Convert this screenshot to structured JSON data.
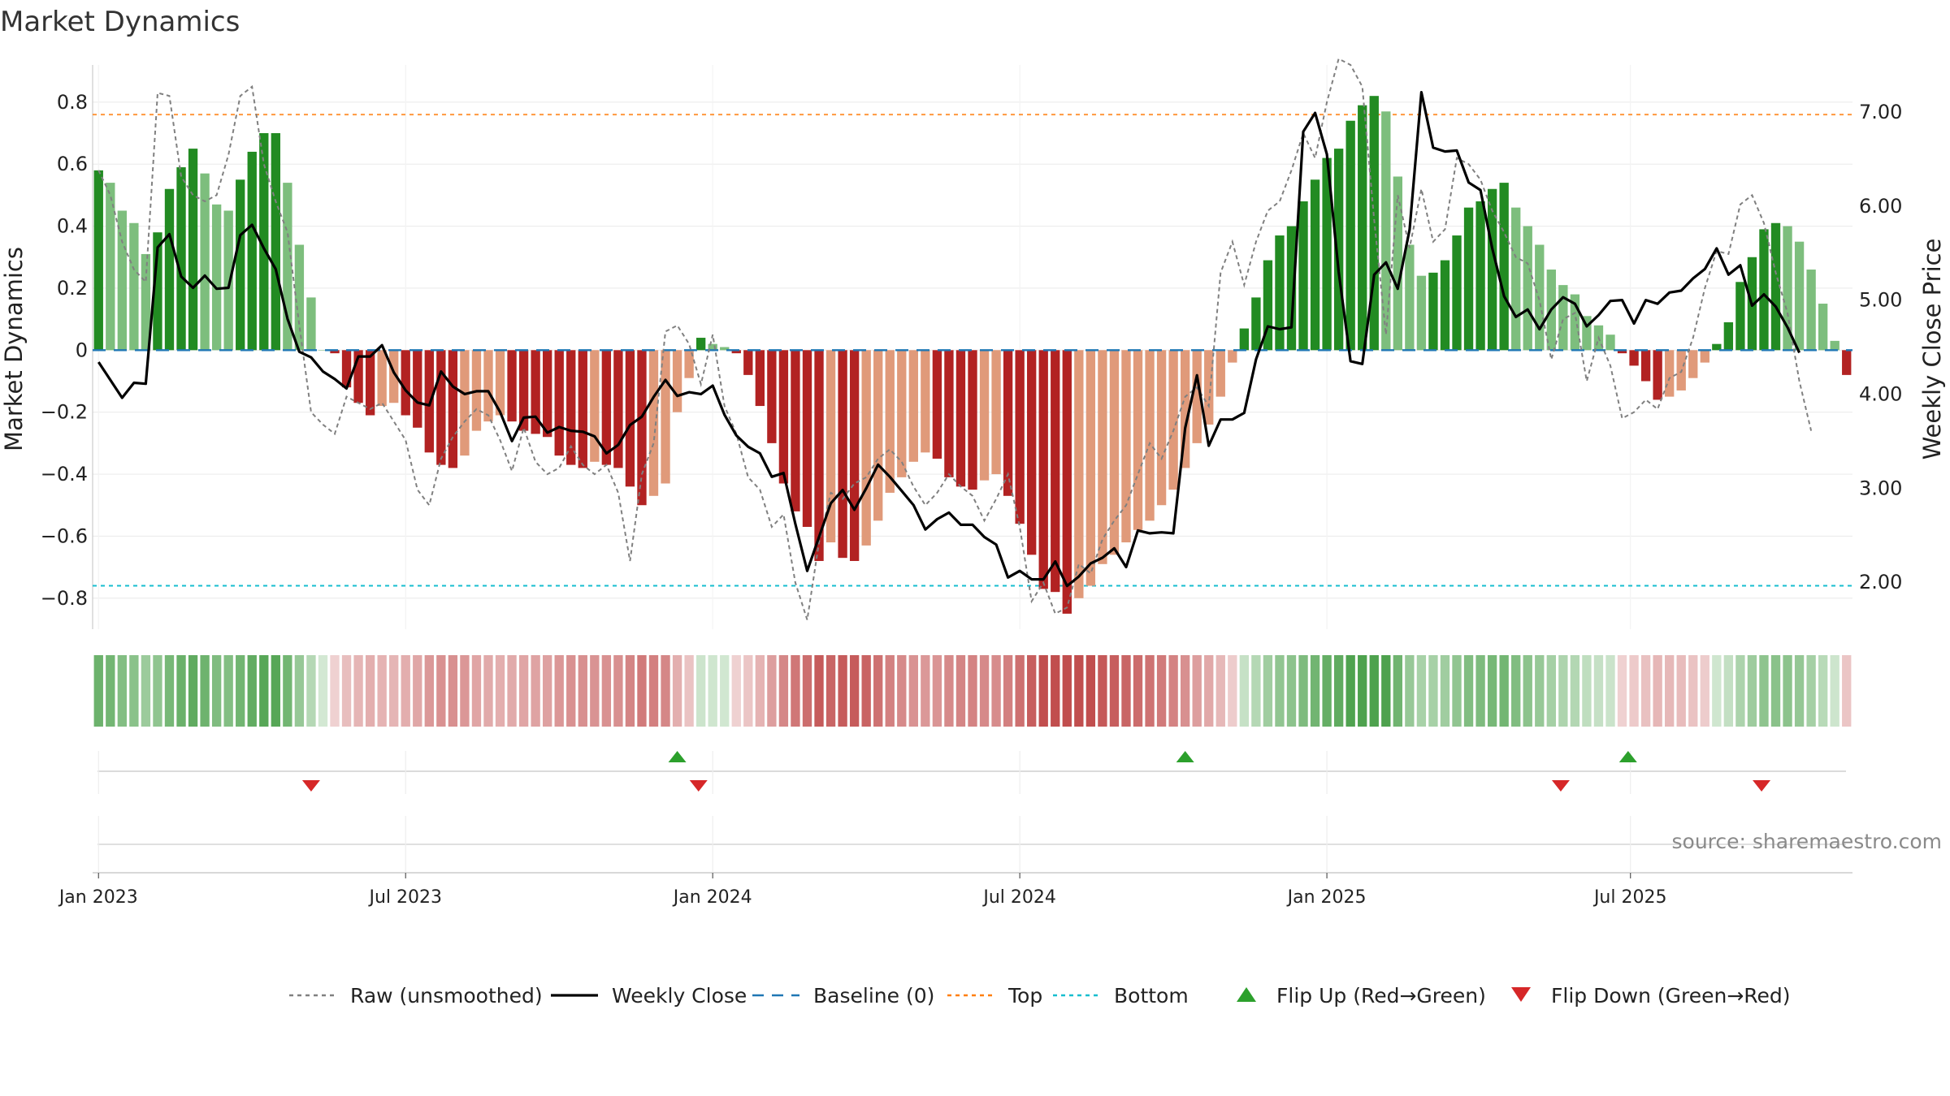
{
  "chart_data": {
    "type": "bar",
    "title": "Market Dynamics",
    "ylabel_left": "Market Dynamics",
    "ylabel_right": "Weekly Close Price",
    "source_text": "source: sharemaestro.com",
    "x_ticks": [
      "Jan 2023",
      "Jul 2023",
      "Jan 2024",
      "Jul 2024",
      "Jan 2025",
      "Jul 2025"
    ],
    "x_tick_weeks": [
      0.5,
      26.5,
      52.5,
      78.5,
      104.5,
      130.2
    ],
    "y_left_ticks": [
      "0.8",
      "0.6",
      "0.4",
      "0.2",
      "0",
      "−0.2",
      "−0.4",
      "−0.6",
      "−0.8"
    ],
    "y_left_tick_values": [
      0.8,
      0.6,
      0.4,
      0.2,
      0,
      -0.2,
      -0.4,
      -0.6,
      -0.8
    ],
    "y_right_ticks": [
      "7.00",
      "6.00",
      "5.00",
      "4.00",
      "3.00",
      "2.00"
    ],
    "y_right_tick_values": [
      7,
      6,
      5,
      4,
      3,
      2
    ],
    "ylim_left": [
      -0.9,
      0.92
    ],
    "ylim_right": [
      1.5,
      7.5
    ],
    "grid": true,
    "legend_position": "bottom",
    "reference_lines": {
      "top": 0.76,
      "bottom": -0.76,
      "baseline": 0
    },
    "colors": {
      "strong_green": "#228B22",
      "light_green": "#7DBE7D",
      "strong_red": "#B22222",
      "light_red": "#E09A7A",
      "raw_line": "#808080",
      "close_line": "#000000",
      "baseline": "#1F77B4",
      "top": "#FF7F0E",
      "bottom": "#17BECF",
      "flip_up": "#2CA02C",
      "flip_down": "#D62728"
    },
    "series": [
      {
        "name": "Market Dynamics (smoothed)",
        "values": [
          0.58,
          0.54,
          0.45,
          0.41,
          0.31,
          0.38,
          0.52,
          0.59,
          0.65,
          0.57,
          0.47,
          0.45,
          0.55,
          0.64,
          0.7,
          0.7,
          0.54,
          0.34,
          0.17,
          0.0,
          -0.01,
          -0.12,
          -0.17,
          -0.21,
          -0.18,
          -0.17,
          -0.21,
          -0.25,
          -0.33,
          -0.37,
          -0.38,
          -0.34,
          -0.26,
          -0.23,
          -0.21,
          -0.23,
          -0.26,
          -0.27,
          -0.28,
          -0.34,
          -0.37,
          -0.38,
          -0.36,
          -0.37,
          -0.38,
          -0.44,
          -0.5,
          -0.47,
          -0.43,
          -0.2,
          -0.09,
          0.04,
          0.02,
          0.01,
          -0.01,
          -0.08,
          -0.18,
          -0.3,
          -0.43,
          -0.52,
          -0.57,
          -0.68,
          -0.62,
          -0.67,
          -0.68,
          -0.63,
          -0.55,
          -0.46,
          -0.41,
          -0.36,
          -0.33,
          -0.35,
          -0.41,
          -0.44,
          -0.45,
          -0.42,
          -0.4,
          -0.47,
          -0.56,
          -0.66,
          -0.77,
          -0.78,
          -0.85,
          -0.8,
          -0.76,
          -0.69,
          -0.66,
          -0.62,
          -0.58,
          -0.55,
          -0.5,
          -0.45,
          -0.38,
          -0.3,
          -0.24,
          -0.15,
          -0.04,
          0.07,
          0.17,
          0.29,
          0.37,
          0.4,
          0.48,
          0.55,
          0.62,
          0.65,
          0.74,
          0.79,
          0.82,
          0.77,
          0.56,
          0.34,
          0.24,
          0.25,
          0.29,
          0.37,
          0.46,
          0.48,
          0.52,
          0.54,
          0.46,
          0.4,
          0.34,
          0.26,
          0.21,
          0.18,
          0.11,
          0.08,
          0.05,
          -0.01,
          -0.05,
          -0.1,
          -0.16,
          -0.15,
          -0.13,
          -0.09,
          -0.04,
          0.02,
          0.09,
          0.22,
          0.3,
          0.39,
          0.41,
          0.4,
          0.35,
          0.26,
          0.15,
          0.03,
          -0.08
        ]
      },
      {
        "name": "Raw (unsmoothed)",
        "values": [
          0.58,
          0.5,
          0.35,
          0.26,
          0.22,
          0.83,
          0.82,
          0.56,
          0.5,
          0.48,
          0.5,
          0.63,
          0.82,
          0.85,
          0.6,
          0.48,
          0.38,
          0.08,
          -0.2,
          -0.24,
          -0.27,
          -0.15,
          -0.17,
          -0.19,
          -0.17,
          -0.23,
          -0.29,
          -0.45,
          -0.5,
          -0.35,
          -0.28,
          -0.23,
          -0.19,
          -0.21,
          -0.29,
          -0.39,
          -0.25,
          -0.36,
          -0.4,
          -0.38,
          -0.31,
          -0.37,
          -0.4,
          -0.37,
          -0.46,
          -0.68,
          -0.4,
          -0.3,
          0.06,
          0.08,
          0.02,
          -0.11,
          0.05,
          -0.18,
          -0.27,
          -0.41,
          -0.45,
          -0.57,
          -0.53,
          -0.75,
          -0.87,
          -0.62,
          -0.46,
          -0.48,
          -0.43,
          -0.41,
          -0.35,
          -0.32,
          -0.36,
          -0.44,
          -0.5,
          -0.46,
          -0.4,
          -0.44,
          -0.47,
          -0.55,
          -0.48,
          -0.4,
          -0.57,
          -0.81,
          -0.75,
          -0.85,
          -0.83,
          -0.69,
          -0.72,
          -0.61,
          -0.55,
          -0.5,
          -0.4,
          -0.3,
          -0.35,
          -0.26,
          -0.15,
          -0.12,
          -0.18,
          0.25,
          0.35,
          0.21,
          0.35,
          0.45,
          0.48,
          0.58,
          0.7,
          0.62,
          0.8,
          0.94,
          0.92,
          0.85,
          0.42,
          0.05,
          0.5,
          0.33,
          0.52,
          0.35,
          0.39,
          0.62,
          0.6,
          0.55,
          0.45,
          0.38,
          0.3,
          0.28,
          0.16,
          -0.03,
          0.1,
          0.12,
          -0.1,
          0.04,
          -0.05,
          -0.22,
          -0.2,
          -0.16,
          -0.19,
          -0.09,
          -0.07,
          0.04,
          0.2,
          0.32,
          0.31,
          0.47,
          0.5,
          0.41,
          0.25,
          0.12,
          -0.1,
          -0.26
        ]
      },
      {
        "name": "Weekly Close",
        "values": [
          4.34,
          4.15,
          3.96,
          4.12,
          4.11,
          5.56,
          5.7,
          5.25,
          5.13,
          5.26,
          5.12,
          5.13,
          5.69,
          5.8,
          5.55,
          5.33,
          4.8,
          4.45,
          4.39,
          4.24,
          4.16,
          4.06,
          4.4,
          4.4,
          4.52,
          4.23,
          4.04,
          3.91,
          3.88,
          4.24,
          4.08,
          4.0,
          4.03,
          4.03,
          3.81,
          3.5,
          3.75,
          3.76,
          3.59,
          3.65,
          3.61,
          3.6,
          3.55,
          3.37,
          3.46,
          3.67,
          3.76,
          3.97,
          4.15,
          3.98,
          4.02,
          4.0,
          4.09,
          3.78,
          3.56,
          3.44,
          3.37,
          3.12,
          3.16,
          2.62,
          2.12,
          2.48,
          2.84,
          2.98,
          2.77,
          3.0,
          3.25,
          3.12,
          2.97,
          2.82,
          2.56,
          2.67,
          2.74,
          2.61,
          2.61,
          2.48,
          2.4,
          2.05,
          2.12,
          2.03,
          2.03,
          2.22,
          1.96,
          2.06,
          2.2,
          2.26,
          2.36,
          2.16,
          2.55,
          2.52,
          2.53,
          2.52,
          3.64,
          4.2,
          3.45,
          3.73,
          3.73,
          3.8,
          4.37,
          4.72,
          4.69,
          4.71,
          6.79,
          6.99,
          6.55,
          5.3,
          4.35,
          4.32,
          5.27,
          5.4,
          5.12,
          5.75,
          7.21,
          6.62,
          6.58,
          6.59,
          6.25,
          6.17,
          5.55,
          5.04,
          4.82,
          4.9,
          4.69,
          4.9,
          5.03,
          4.96,
          4.72,
          4.84,
          4.99,
          5.0,
          4.75,
          5.0,
          4.96,
          5.08,
          5.1,
          5.23,
          5.33,
          5.55,
          5.27,
          5.37,
          4.94,
          5.06,
          4.93,
          4.71,
          4.44
        ]
      }
    ],
    "flip_up_weeks": [
      49.5,
      92.5,
      130.0
    ],
    "flip_down_weeks": [
      18.5,
      51.3,
      124.3,
      141.3
    ],
    "legend": [
      {
        "label": "Raw (unsmoothed)",
        "style": "dotted",
        "color": "#808080"
      },
      {
        "label": "Weekly Close",
        "style": "solid",
        "color": "#000000"
      },
      {
        "label": "Baseline (0)",
        "style": "dashed",
        "color": "#1F77B4"
      },
      {
        "label": "Top",
        "style": "dotted",
        "color": "#FF7F0E"
      },
      {
        "label": "Bottom",
        "style": "dotted",
        "color": "#17BECF"
      },
      {
        "label": "Flip Up (Red→Green)",
        "style": "triangle-up",
        "color": "#2CA02C"
      },
      {
        "label": "Flip Down (Green→Red)",
        "style": "triangle-down",
        "color": "#D62728"
      }
    ]
  }
}
